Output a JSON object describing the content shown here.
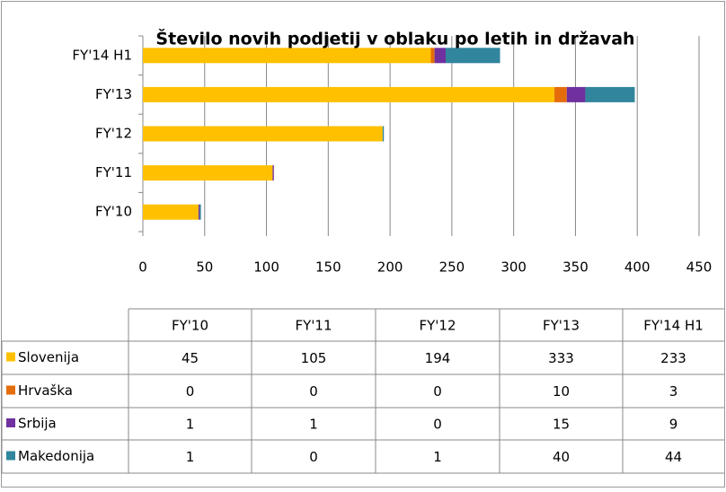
{
  "chart_data": {
    "type": "bar",
    "orientation": "horizontal",
    "stacked": true,
    "title": "Število novih podjetij v oblaku po letih in državah",
    "categories": [
      "FY'10",
      "FY'11",
      "FY'12",
      "FY'13",
      "FY'14 H1"
    ],
    "series": [
      {
        "name": "Slovenija",
        "color": "#ffc000",
        "values": [
          45,
          105,
          194,
          333,
          233
        ]
      },
      {
        "name": "Hrvaška",
        "color": "#e46c0a",
        "values": [
          0,
          0,
          0,
          10,
          3
        ]
      },
      {
        "name": "Srbija",
        "color": "#7030a0",
        "values": [
          1,
          1,
          0,
          15,
          9
        ]
      },
      {
        "name": "Makedonija",
        "color": "#31859c",
        "values": [
          1,
          0,
          1,
          40,
          44
        ]
      }
    ],
    "xlim": [
      0,
      450
    ],
    "xticks": [
      0,
      50,
      100,
      150,
      200,
      250,
      300,
      350,
      400,
      450
    ],
    "grid": true,
    "data_table": true
  }
}
